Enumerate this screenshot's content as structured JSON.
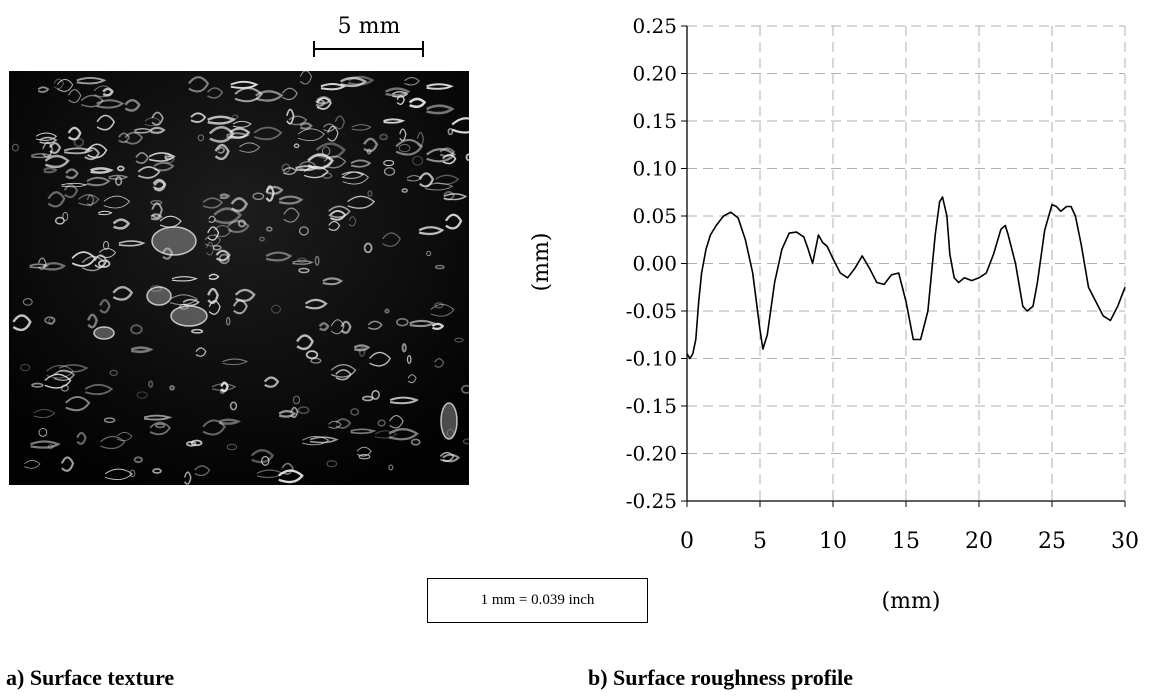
{
  "figure_a": {
    "scale_label": "5 mm",
    "conversion_note": "1 mm = 0.039 inch",
    "caption": "a) Surface texture"
  },
  "figure_b": {
    "caption": "b) Surface roughness profile"
  },
  "chart_data": {
    "type": "line",
    "title": "",
    "xlabel": "(mm)",
    "ylabel": "(mm)",
    "xlim": [
      0,
      30
    ],
    "ylim": [
      -0.25,
      0.25
    ],
    "xticks": [
      "0",
      "5",
      "10",
      "15",
      "20",
      "25",
      "30"
    ],
    "yticks": [
      "0.25",
      "0.20",
      "0.15",
      "0.10",
      "0.05",
      "0.00",
      "-0.05",
      "-0.10",
      "-0.15",
      "-0.20",
      "-0.25"
    ],
    "grid": true,
    "grid_style": "dashed",
    "series": [
      {
        "color": "#000000",
        "x": [
          0.0,
          0.2,
          0.4,
          0.6,
          0.8,
          1.0,
          1.3,
          1.6,
          2.0,
          2.5,
          3.0,
          3.5,
          4.0,
          4.5,
          5.0,
          5.2,
          5.5,
          6.0,
          6.5,
          7.0,
          7.5,
          8.0,
          8.3,
          8.6,
          9.0,
          9.3,
          9.6,
          10.0,
          10.5,
          11.0,
          11.5,
          12.0,
          12.5,
          13.0,
          13.5,
          14.0,
          14.5,
          15.0,
          15.5,
          16.0,
          16.5,
          17.0,
          17.3,
          17.5,
          17.8,
          18.0,
          18.3,
          18.6,
          19.0,
          19.5,
          20.0,
          20.5,
          21.0,
          21.5,
          21.8,
          22.0,
          22.5,
          23.0,
          23.3,
          23.7,
          24.0,
          24.5,
          25.0,
          25.3,
          25.6,
          26.0,
          26.3,
          26.6,
          27.0,
          27.5,
          28.0,
          28.5,
          29.0,
          29.5,
          30.0
        ],
        "y": [
          -0.095,
          -0.1,
          -0.095,
          -0.08,
          -0.04,
          -0.01,
          0.015,
          0.03,
          0.04,
          0.05,
          0.054,
          0.048,
          0.025,
          -0.01,
          -0.07,
          -0.09,
          -0.075,
          -0.02,
          0.015,
          0.032,
          0.033,
          0.028,
          0.015,
          0.0,
          0.03,
          0.022,
          0.018,
          0.005,
          -0.01,
          -0.015,
          -0.005,
          0.008,
          -0.005,
          -0.02,
          -0.022,
          -0.012,
          -0.01,
          -0.04,
          -0.08,
          -0.08,
          -0.05,
          0.03,
          0.065,
          0.07,
          0.05,
          0.01,
          -0.015,
          -0.02,
          -0.015,
          -0.018,
          -0.015,
          -0.01,
          0.01,
          0.036,
          0.04,
          0.03,
          0.0,
          -0.045,
          -0.05,
          -0.045,
          -0.02,
          0.035,
          0.062,
          0.06,
          0.055,
          0.06,
          0.06,
          0.05,
          0.02,
          -0.025,
          -0.04,
          -0.055,
          -0.06,
          -0.045,
          -0.025
        ]
      }
    ]
  }
}
